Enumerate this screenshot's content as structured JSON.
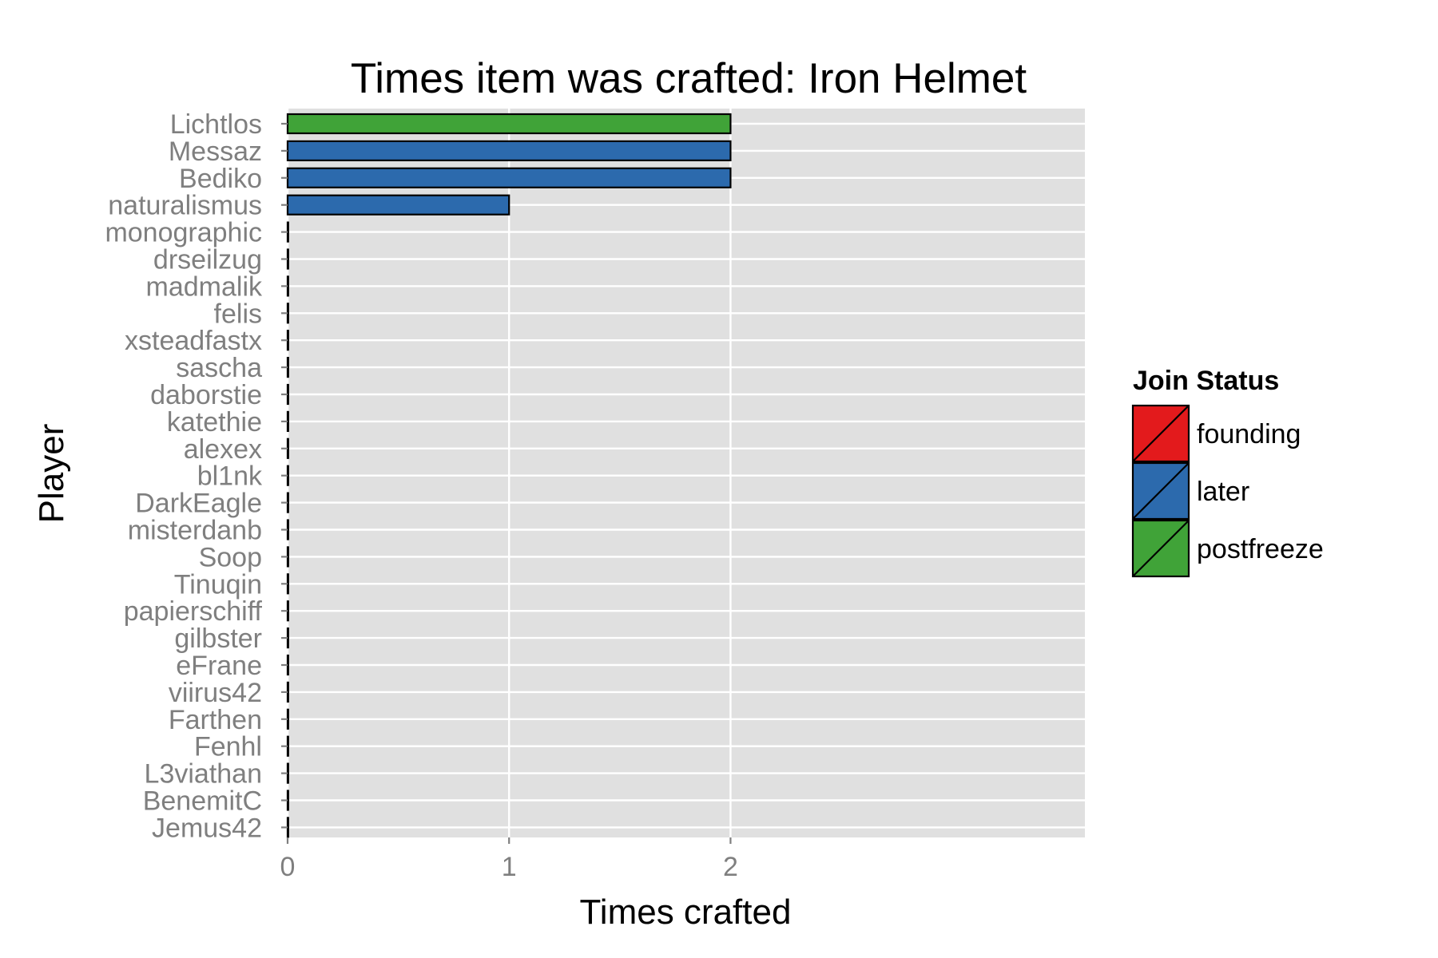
{
  "chart_data": {
    "type": "bar",
    "orientation": "horizontal",
    "title": "Times item was crafted: Iron Helmet",
    "xlabel": "Times crafted",
    "ylabel": "Player",
    "xlim": [
      0,
      3.6
    ],
    "x_ticks": [
      0,
      1,
      2
    ],
    "x_tick_labels": [
      "0",
      "1",
      "2"
    ],
    "grid": true,
    "legend_position": "right",
    "legend": {
      "title": "Join Status",
      "entries": [
        {
          "label": "founding",
          "color": "#e31a1c"
        },
        {
          "label": "later",
          "color": "#2c6aad"
        },
        {
          "label": "postfreeze",
          "color": "#40a338"
        }
      ]
    },
    "bars": [
      {
        "player": "Lichtlos",
        "value": 2,
        "status": "postfreeze"
      },
      {
        "player": "Messaz",
        "value": 2,
        "status": "later"
      },
      {
        "player": "Bediko",
        "value": 2,
        "status": "later"
      },
      {
        "player": "naturalismus",
        "value": 1,
        "status": "later"
      },
      {
        "player": "monographic",
        "value": 0,
        "status": "later"
      },
      {
        "player": "drseilzug",
        "value": 0,
        "status": "later"
      },
      {
        "player": "madmalik",
        "value": 0,
        "status": "later"
      },
      {
        "player": "felis",
        "value": 0,
        "status": "later"
      },
      {
        "player": "xsteadfastx",
        "value": 0,
        "status": "later"
      },
      {
        "player": "sascha",
        "value": 0,
        "status": "later"
      },
      {
        "player": "daborstie",
        "value": 0,
        "status": "later"
      },
      {
        "player": "katethie",
        "value": 0,
        "status": "later"
      },
      {
        "player": "alexex",
        "value": 0,
        "status": "later"
      },
      {
        "player": "bl1nk",
        "value": 0,
        "status": "later"
      },
      {
        "player": "DarkEagle",
        "value": 0,
        "status": "later"
      },
      {
        "player": "misterdanb",
        "value": 0,
        "status": "later"
      },
      {
        "player": "Soop",
        "value": 0,
        "status": "later"
      },
      {
        "player": "Tinuqin",
        "value": 0,
        "status": "later"
      },
      {
        "player": "papierschiff",
        "value": 0,
        "status": "later"
      },
      {
        "player": "gilbster",
        "value": 0,
        "status": "later"
      },
      {
        "player": "eFrane",
        "value": 0,
        "status": "later"
      },
      {
        "player": "viirus42",
        "value": 0,
        "status": "later"
      },
      {
        "player": "Farthen",
        "value": 0,
        "status": "later"
      },
      {
        "player": "Fenhl",
        "value": 0,
        "status": "later"
      },
      {
        "player": "L3viathan",
        "value": 0,
        "status": "later"
      },
      {
        "player": "BenemitC",
        "value": 0,
        "status": "later"
      },
      {
        "player": "Jemus42",
        "value": 0,
        "status": "later"
      }
    ],
    "colors": {
      "panel_background": "#e0e0e0",
      "gridline": "#ffffff",
      "bar_outline": "#000000",
      "tick_mark": "#7f7f7f"
    }
  }
}
